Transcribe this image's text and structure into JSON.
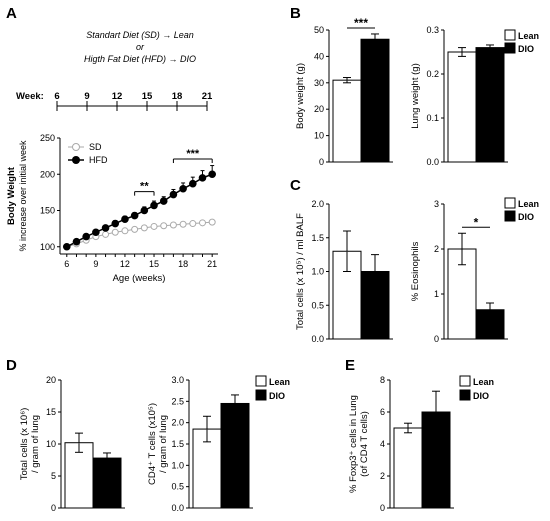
{
  "panel_letters": {
    "A": "A",
    "B": "B",
    "C": "C",
    "D": "D",
    "E": "E"
  },
  "scheme": {
    "line1": "Standart Diet (SD) → Lean",
    "line2": "or",
    "line3": "Higth Fat Diet (HFD) → DIO",
    "week_label": "Week:",
    "weeks": [
      "6",
      "9",
      "12",
      "15",
      "18",
      "21"
    ]
  },
  "legend_lean_dio": {
    "lean": "Lean",
    "dio": "DIO"
  },
  "colors": {
    "lean": "#ffffff",
    "dio": "#000000",
    "sd_line": "#aaaaaa",
    "hfd_line": "#000000"
  },
  "chart_data": [
    {
      "id": "A",
      "type": "line",
      "ylabel": "Body Weight",
      "ylabel2": "% increase over initial week",
      "xlabel": "Age (weeks)",
      "x": [
        6,
        7,
        8,
        9,
        10,
        11,
        12,
        13,
        14,
        15,
        16,
        17,
        18,
        19,
        20,
        21
      ],
      "xticks": [
        6,
        9,
        12,
        15,
        18,
        21
      ],
      "ylim": [
        90,
        250
      ],
      "yticks": [
        100,
        150,
        200,
        250
      ],
      "series": [
        {
          "name": "SD",
          "values": [
            100,
            104,
            109,
            114,
            117,
            120,
            122,
            124,
            126,
            128,
            129,
            130,
            131,
            132,
            133,
            134
          ]
        },
        {
          "name": "HFD",
          "values": [
            100,
            107,
            114,
            120,
            126,
            132,
            138,
            143,
            150,
            157,
            163,
            172,
            180,
            187,
            195,
            200
          ],
          "errors": [
            2,
            2,
            3,
            3,
            3,
            4,
            4,
            4,
            5,
            6,
            6,
            7,
            8,
            9,
            10,
            12
          ]
        }
      ],
      "annotations": [
        {
          "text": "**",
          "x_from": 13,
          "x_to": 15
        },
        {
          "text": "***",
          "x_from": 17,
          "x_to": 21
        }
      ]
    },
    {
      "id": "B1",
      "type": "bar",
      "ylabel": "Body weight (g)",
      "categories": [
        "Lean",
        "DIO"
      ],
      "values": [
        31,
        46.5
      ],
      "errors": [
        1,
        2
      ],
      "ylim": [
        0,
        50
      ],
      "yticks": [
        0,
        10,
        20,
        30,
        40,
        50
      ],
      "ytick_labels": [
        "0",
        "10",
        "20",
        "30",
        "40",
        "50"
      ],
      "significance": "***"
    },
    {
      "id": "B2",
      "type": "bar",
      "ylabel": "Lung weight (g)",
      "categories": [
        "Lean",
        "DIO"
      ],
      "values": [
        0.25,
        0.26
      ],
      "errors": [
        0.01,
        0.006
      ],
      "ylim": [
        0,
        0.3
      ],
      "yticks": [
        0,
        0.1,
        0.2,
        0.3
      ],
      "ytick_labels": [
        "0.0",
        "0.1",
        "0.2",
        "0.3"
      ],
      "significance": ""
    },
    {
      "id": "C1",
      "type": "bar",
      "ylabel": "Total cells (x 10⁵) / ml BALF",
      "categories": [
        "Lean",
        "DIO"
      ],
      "values": [
        1.3,
        1.0
      ],
      "errors": [
        0.3,
        0.25
      ],
      "ylim": [
        0,
        2.0
      ],
      "yticks": [
        0,
        0.5,
        1.0,
        1.5,
        2.0
      ],
      "ytick_labels": [
        "0.0",
        "0.5",
        "1.0",
        "1.5",
        "2.0"
      ],
      "significance": ""
    },
    {
      "id": "C2",
      "type": "bar",
      "ylabel": "% Eosinophils",
      "categories": [
        "Lean",
        "DIO"
      ],
      "values": [
        2.0,
        0.65
      ],
      "errors": [
        0.35,
        0.15
      ],
      "ylim": [
        0,
        3
      ],
      "yticks": [
        0,
        1,
        2,
        3
      ],
      "ytick_labels": [
        "0",
        "1",
        "2",
        "3"
      ],
      "significance": "*"
    },
    {
      "id": "D1",
      "type": "bar",
      "ylabel": "Total cells (x 10⁶)",
      "ylabel2": "/ gram of lung",
      "categories": [
        "Lean",
        "DIO"
      ],
      "values": [
        10.2,
        7.8
      ],
      "errors": [
        1.5,
        0.8
      ],
      "ylim": [
        0,
        20
      ],
      "yticks": [
        0,
        5,
        10,
        15,
        20
      ],
      "ytick_labels": [
        "0",
        "5",
        "10",
        "15",
        "20"
      ],
      "significance": ""
    },
    {
      "id": "D2",
      "type": "bar",
      "ylabel": "CD4⁺ T cells (x10⁵)",
      "ylabel2": "/ gram of lung",
      "categories": [
        "Lean",
        "DIO"
      ],
      "values": [
        1.85,
        2.45
      ],
      "errors": [
        0.3,
        0.2
      ],
      "ylim": [
        0,
        3.0
      ],
      "yticks": [
        0,
        0.5,
        1.0,
        1.5,
        2.0,
        2.5,
        3.0
      ],
      "ytick_labels": [
        "0.0",
        "0.5",
        "1.0",
        "1.5",
        "2.0",
        "2.5",
        "3.0"
      ],
      "significance": ""
    },
    {
      "id": "E",
      "type": "bar",
      "ylabel": "% Foxp3⁺ cells in Lung",
      "ylabel2": "(of CD4 T cells)",
      "categories": [
        "Lean",
        "DIO"
      ],
      "values": [
        5.0,
        6.0
      ],
      "errors": [
        0.3,
        1.3
      ],
      "ylim": [
        0,
        8
      ],
      "yticks": [
        0,
        2,
        4,
        6,
        8
      ],
      "ytick_labels": [
        "0",
        "2",
        "4",
        "6",
        "8"
      ],
      "significance": ""
    }
  ]
}
